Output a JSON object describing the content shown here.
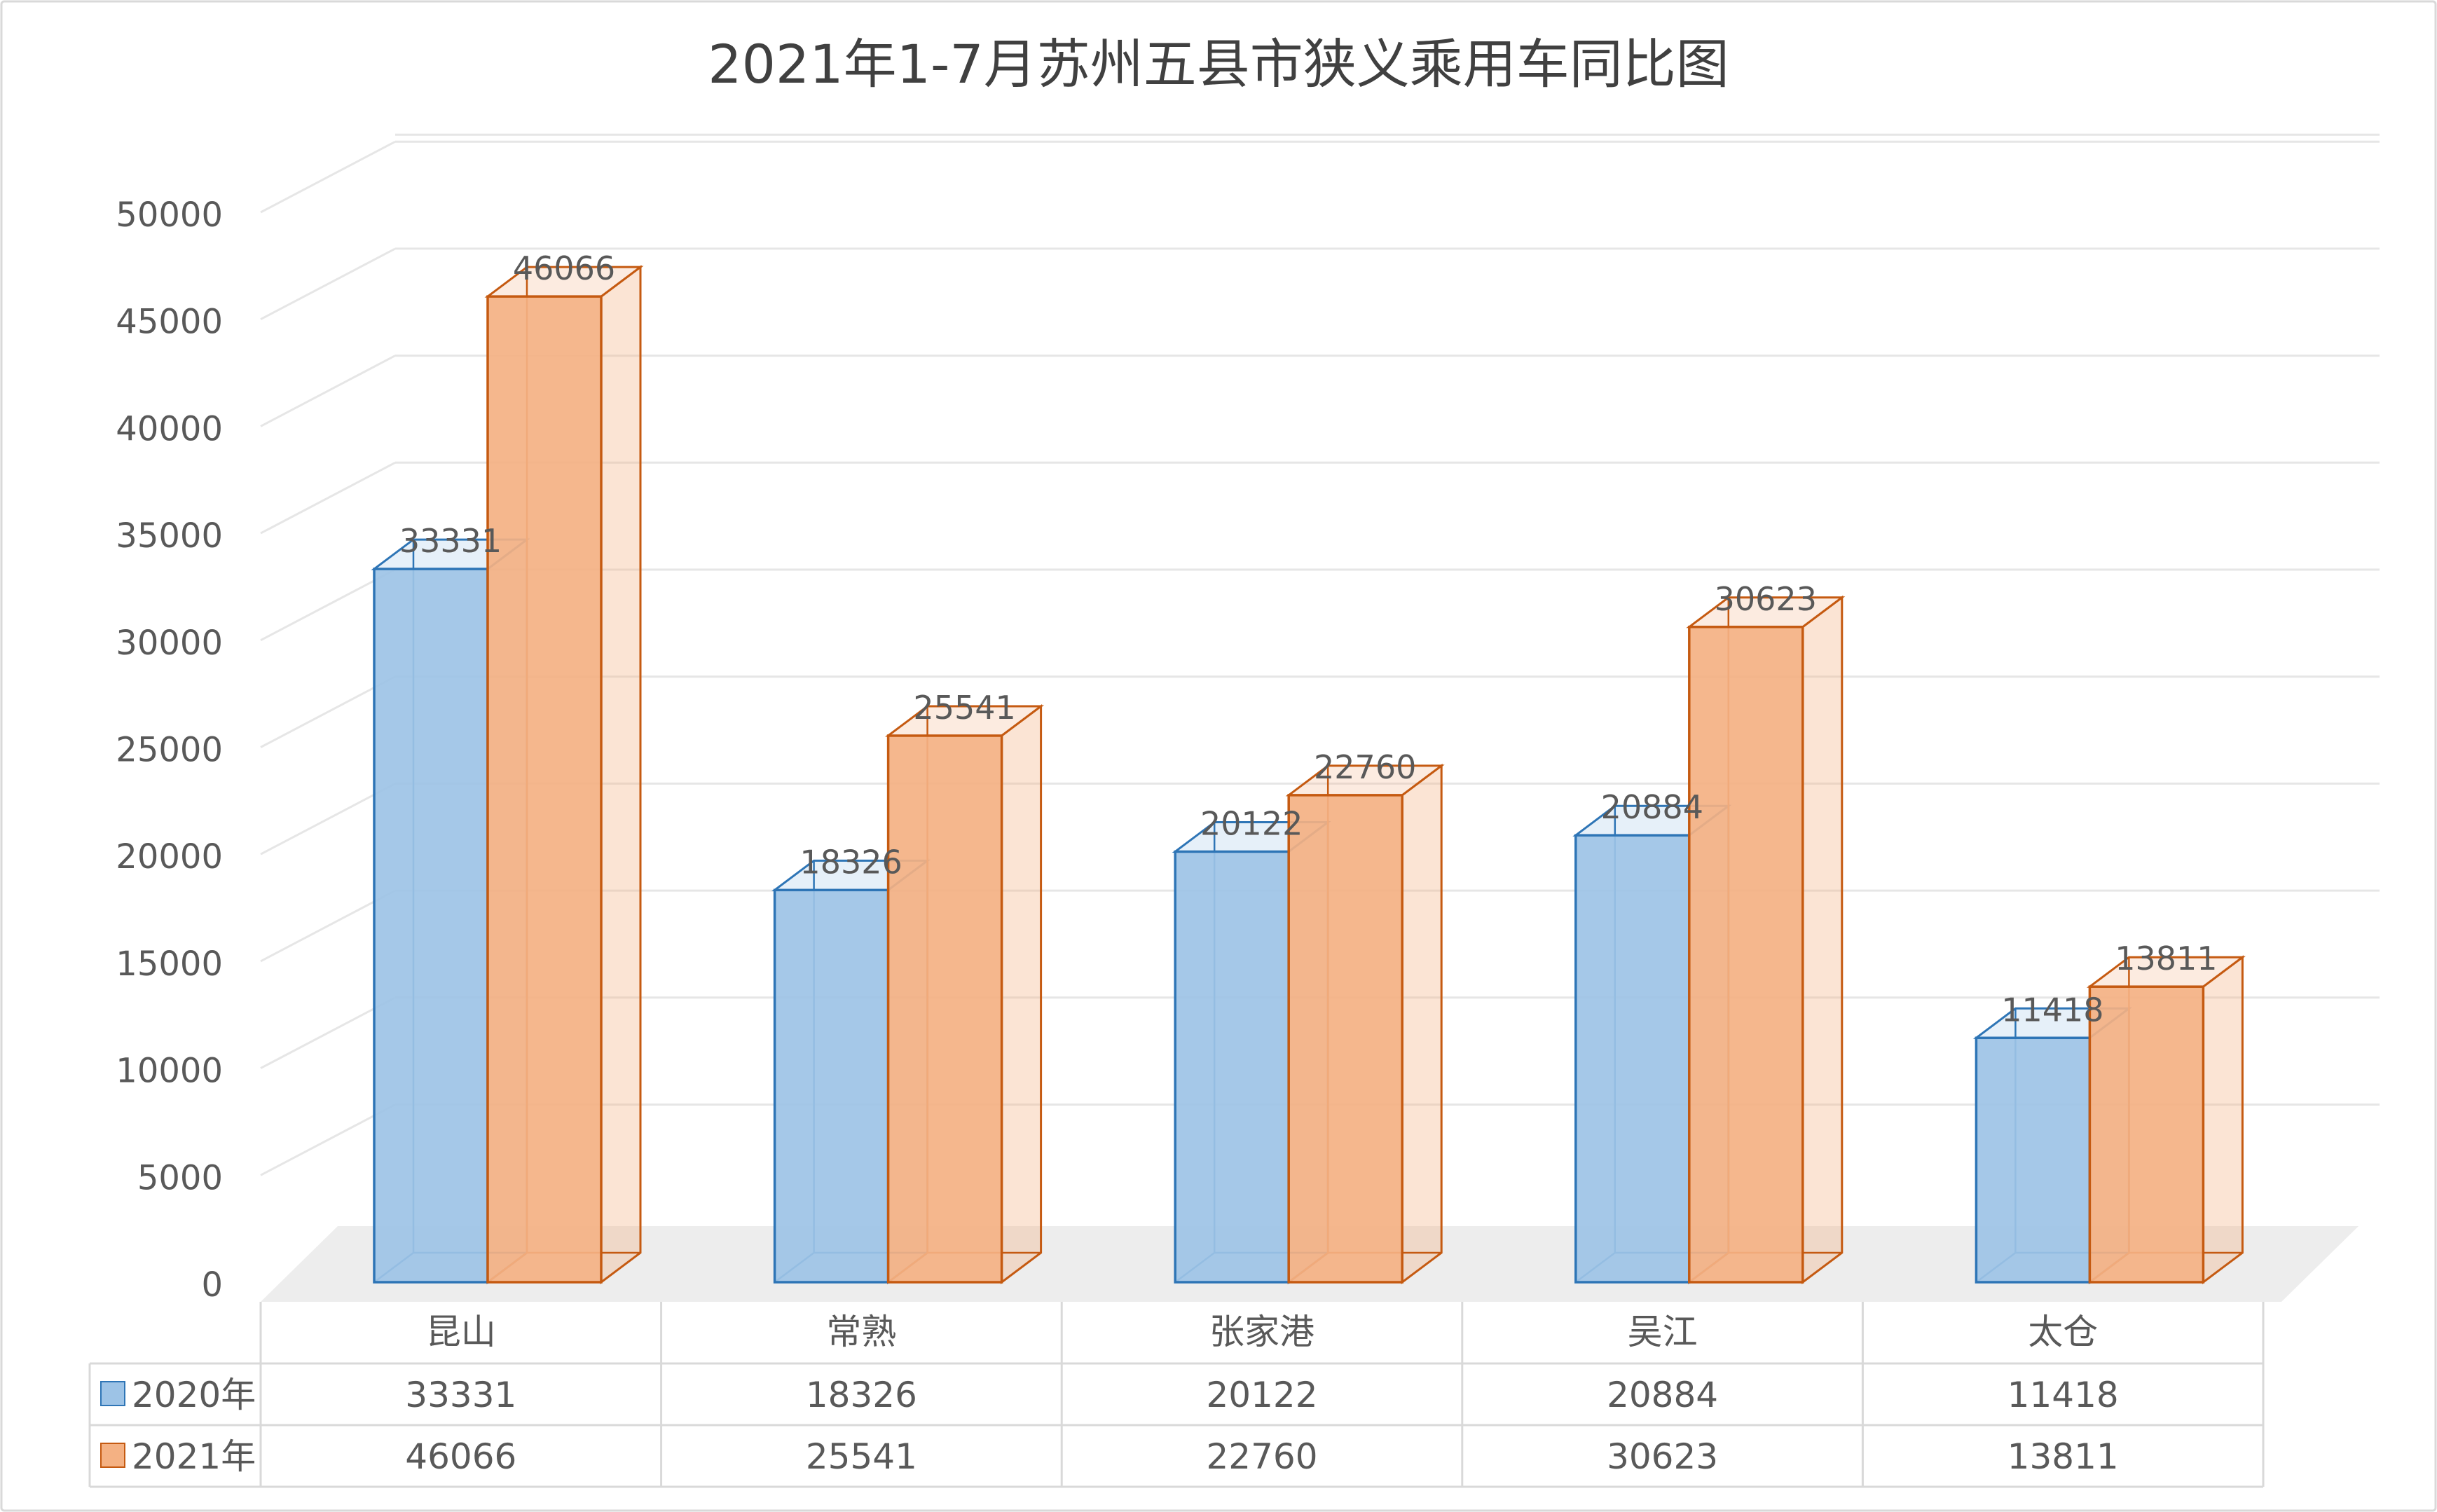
{
  "chart_data": {
    "type": "bar",
    "title": "2021年1-7月苏州五县市狭义乘用车同比图",
    "categories": [
      "昆山",
      "常熟",
      "张家港",
      "吴江",
      "太仓"
    ],
    "series": [
      {
        "name": "2020年",
        "values": [
          33331,
          18326,
          20122,
          20884,
          11418
        ],
        "color": "#9DC3E6",
        "edge": "#2E75B6"
      },
      {
        "name": "2021年",
        "values": [
          46066,
          25541,
          22760,
          30623,
          13811
        ],
        "color": "#F4B183",
        "edge": "#C55A11"
      }
    ],
    "yticks": [
      "0",
      "5000",
      "10000",
      "15000",
      "20000",
      "25000",
      "30000",
      "35000",
      "40000",
      "45000",
      "50000"
    ],
    "ylim": [
      0,
      50000
    ],
    "grid": true,
    "data_table": true,
    "legend": "data-table"
  }
}
